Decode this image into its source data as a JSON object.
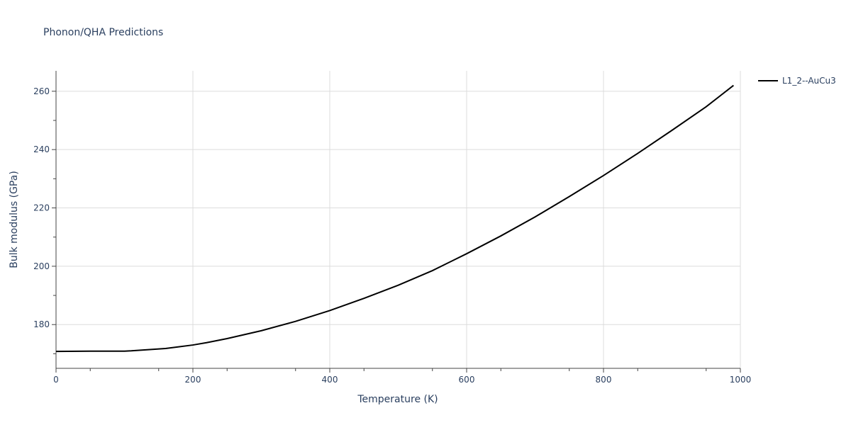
{
  "chart_data": {
    "type": "line",
    "title": "Phonon/QHA Predictions",
    "xlabel": "Temperature (K)",
    "ylabel": "Bulk modulus (GPa)",
    "xlim": [
      0,
      1000
    ],
    "ylim": [
      165,
      267
    ],
    "xticks": [
      0,
      200,
      400,
      600,
      800,
      1000
    ],
    "yticks": [
      180,
      200,
      220,
      240,
      260
    ],
    "grid": true,
    "legend_position": "top-right",
    "series": [
      {
        "name": "L1_2--AuCu3",
        "color": "#000000",
        "x": [
          0,
          50,
          100,
          110,
          160,
          200,
          220,
          250,
          300,
          350,
          400,
          450,
          500,
          550,
          600,
          650,
          700,
          750,
          800,
          850,
          900,
          950,
          990
        ],
        "y": [
          170.8,
          170.9,
          170.9,
          171.0,
          171.8,
          173.0,
          173.8,
          175.2,
          177.9,
          181.1,
          184.8,
          189.0,
          193.5,
          198.5,
          204.3,
          210.4,
          216.9,
          223.9,
          231.1,
          238.7,
          246.6,
          254.7,
          262.0
        ]
      }
    ]
  }
}
